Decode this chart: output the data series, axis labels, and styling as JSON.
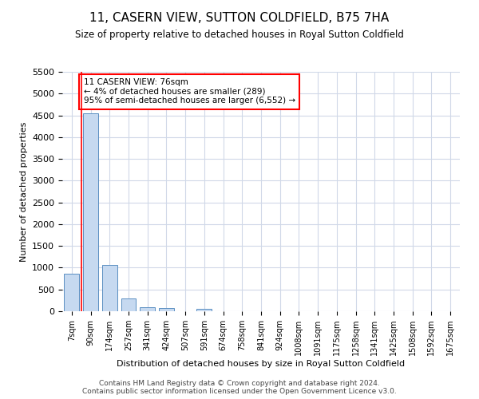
{
  "title": "11, CASERN VIEW, SUTTON COLDFIELD, B75 7HA",
  "subtitle": "Size of property relative to detached houses in Royal Sutton Coldfield",
  "xlabel": "Distribution of detached houses by size in Royal Sutton Coldfield",
  "ylabel": "Number of detached properties",
  "categories": [
    "7sqm",
    "90sqm",
    "174sqm",
    "257sqm",
    "341sqm",
    "424sqm",
    "507sqm",
    "591sqm",
    "674sqm",
    "758sqm",
    "841sqm",
    "924sqm",
    "1008sqm",
    "1091sqm",
    "1175sqm",
    "1258sqm",
    "1341sqm",
    "1425sqm",
    "1508sqm",
    "1592sqm",
    "1675sqm"
  ],
  "values": [
    860,
    4550,
    1060,
    290,
    90,
    72,
    8,
    58,
    0,
    0,
    0,
    0,
    0,
    0,
    0,
    0,
    0,
    0,
    0,
    0,
    0
  ],
  "bar_color": "#c6d9f0",
  "bar_edge_color": "#5a8fc2",
  "red_line_x": 0.5,
  "annotation_text": "11 CASERN VIEW: 76sqm\n← 4% of detached houses are smaller (289)\n95% of semi-detached houses are larger (6,552) →",
  "annotation_box_color": "white",
  "annotation_box_edge_color": "red",
  "ylim": [
    0,
    5500
  ],
  "yticks": [
    0,
    500,
    1000,
    1500,
    2000,
    2500,
    3000,
    3500,
    4000,
    4500,
    5000,
    5500
  ],
  "footer1": "Contains HM Land Registry data © Crown copyright and database right 2024.",
  "footer2": "Contains public sector information licensed under the Open Government Licence v3.0.",
  "background_color": "#ffffff",
  "grid_color": "#d0d8e8"
}
